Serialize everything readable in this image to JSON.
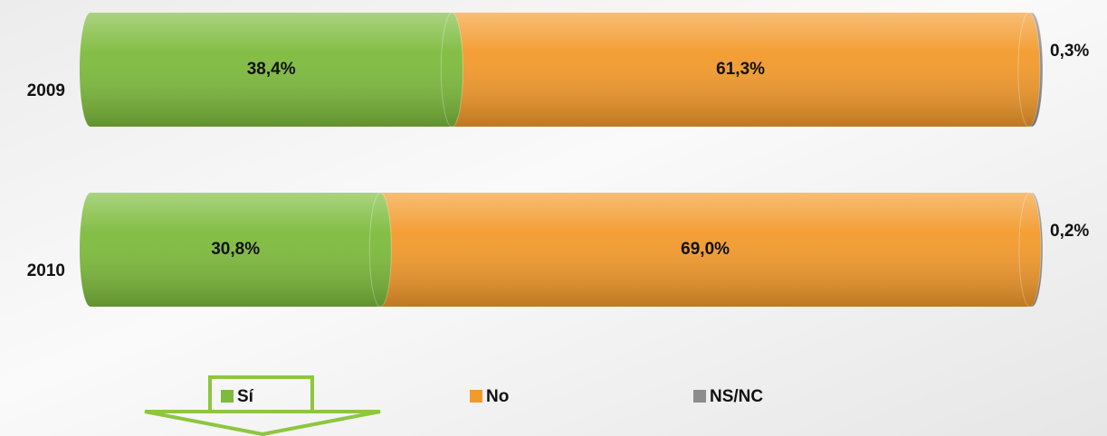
{
  "chart_data": {
    "type": "bar",
    "orientation": "horizontal",
    "stacked": true,
    "categories": [
      "2009",
      "2010"
    ],
    "series": [
      {
        "name": "Sí",
        "color": "#7dbb3c",
        "values": [
          38.4,
          30.8
        ],
        "value_labels": [
          "38,4%",
          "30,8%"
        ]
      },
      {
        "name": "No",
        "color": "#f39a2b",
        "values": [
          61.3,
          69.0
        ],
        "value_labels": [
          "61,3%",
          "69,0%"
        ]
      },
      {
        "name": "NS/NC",
        "color": "#8c8c8c",
        "values": [
          0.3,
          0.2
        ],
        "value_labels": [
          "0,3%",
          "0,2%"
        ]
      }
    ],
    "xlim": [
      0,
      100
    ],
    "legend": "bottom"
  }
}
